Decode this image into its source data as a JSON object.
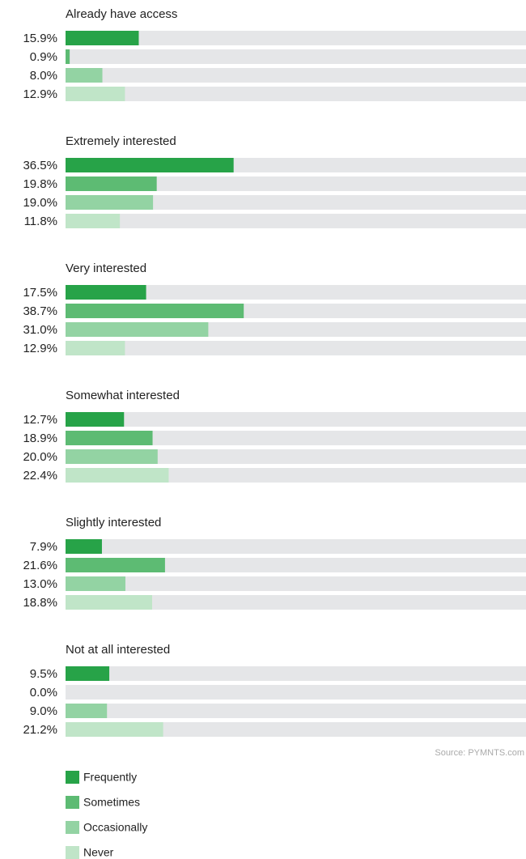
{
  "chart_data": {
    "type": "bar",
    "orientation": "horizontal",
    "categories": [
      "Already have access",
      "Extremely interested",
      "Very interested",
      "Somewhat interested",
      "Slightly interested",
      "Not at all interested"
    ],
    "xlim": [
      0,
      100
    ],
    "series": [
      {
        "name": "Frequently",
        "color": "#27a348",
        "values": [
          15.9,
          36.5,
          17.5,
          12.7,
          7.9,
          9.5
        ],
        "value_labels": [
          "15.9%",
          "36.5%",
          "17.5%",
          "12.7%",
          "7.9%",
          "9.5%"
        ]
      },
      {
        "name": "Sometimes",
        "color": "#5dbb73",
        "values": [
          0.9,
          19.8,
          38.7,
          18.9,
          21.6,
          0.0
        ],
        "value_labels": [
          "0.9%",
          "19.8%",
          "38.7%",
          "18.9%",
          "21.6%",
          "0.0%"
        ]
      },
      {
        "name": "Occasionally",
        "color": "#93d3a3",
        "values": [
          8.0,
          19.0,
          31.0,
          20.0,
          13.0,
          9.0
        ],
        "value_labels": [
          "8.0%",
          "19.0%",
          "31.0%",
          "20.0%",
          "13.0%",
          "9.0%"
        ]
      },
      {
        "name": "Never",
        "color": "#c0e5c8",
        "values": [
          12.9,
          11.8,
          12.9,
          22.4,
          18.8,
          21.2
        ],
        "value_labels": [
          "12.9%",
          "11.8%",
          "12.9%",
          "22.4%",
          "18.8%",
          "21.2%"
        ]
      }
    ],
    "source": "Source: PYMNTS.com"
  }
}
